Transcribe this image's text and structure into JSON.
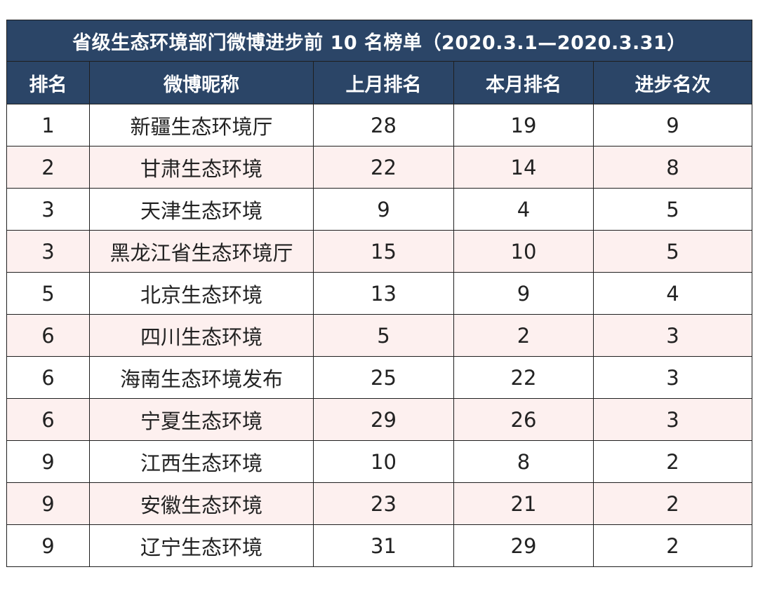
{
  "table": {
    "title": "省级生态环境部门微博进步前 10 名榜单（2020.3.1—2020.3.31）",
    "headers": [
      "排名",
      "微博昵称",
      "上月排名",
      "本月排名",
      "进步名次"
    ],
    "rows": [
      [
        "1",
        "新疆生态环境厅",
        "28",
        "19",
        "9"
      ],
      [
        "2",
        "甘肃生态环境",
        "22",
        "14",
        "8"
      ],
      [
        "3",
        "天津生态环境",
        "9",
        "4",
        "5"
      ],
      [
        "3",
        "黑龙江省生态环境厅",
        "15",
        "10",
        "5"
      ],
      [
        "5",
        "北京生态环境",
        "13",
        "9",
        "4"
      ],
      [
        "6",
        "四川生态环境",
        "5",
        "2",
        "3"
      ],
      [
        "6",
        "海南生态环境发布",
        "25",
        "22",
        "3"
      ],
      [
        "6",
        "宁夏生态环境",
        "29",
        "26",
        "3"
      ],
      [
        "9",
        "江西生态环境",
        "10",
        "8",
        "2"
      ],
      [
        "9",
        "安徽生态环境",
        "23",
        "21",
        "2"
      ],
      [
        "9",
        "辽宁生态环境",
        "31",
        "29",
        "2"
      ]
    ]
  },
  "colors": {
    "header_bg": "#2b4567",
    "header_text": "#ffffff",
    "row_alt_bg": "#fdf0ef",
    "row_bg": "#ffffff",
    "border": "#1f1f1f"
  }
}
